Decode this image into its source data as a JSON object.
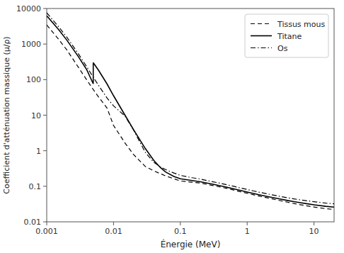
{
  "chart_data": {
    "type": "line",
    "xlabel": "Énergie (MeV)",
    "ylabel": "Coefficient d'atténuation massique (µ/ρ)",
    "log": true,
    "grid": false,
    "legend": "upper right",
    "xlim": [
      0.001,
      20
    ],
    "ylim": [
      0.01,
      10000
    ],
    "xticks": [
      0.001,
      0.01,
      0.1,
      1,
      10
    ],
    "yticks": [
      0.01,
      0.1,
      1,
      10,
      100,
      1000,
      10000
    ],
    "series": [
      {
        "name": "Tissus mous",
        "color": "#000000",
        "line_style": "dashed",
        "x": [
          0.001,
          0.0015,
          0.002,
          0.003,
          0.004,
          0.005,
          0.006,
          0.008,
          0.01,
          0.015,
          0.02,
          0.03,
          0.04,
          0.05,
          0.06,
          0.08,
          0.1,
          0.15,
          0.2,
          0.3,
          0.4,
          0.5,
          0.6,
          0.8,
          1.0,
          1.25,
          1.5,
          2.0,
          3.0,
          4.0,
          5.0,
          6.0,
          8.0,
          10.0,
          15.0,
          20.0
        ],
        "values": [
          3456,
          1376,
          683,
          218,
          96.0,
          51.7,
          32.0,
          15.8,
          5.12,
          1.61,
          0.778,
          0.358,
          0.272,
          0.227,
          0.196,
          0.163,
          0.141,
          0.13,
          0.123,
          0.106,
          0.0953,
          0.087,
          0.0802,
          0.07,
          0.0635,
          0.0575,
          0.0532,
          0.0473,
          0.0401,
          0.0357,
          0.0327,
          0.0307,
          0.0279,
          0.0261,
          0.0234,
          0.0222
        ]
      },
      {
        "name": "Titane",
        "color": "#000000",
        "line_style": "solid",
        "x": [
          0.001,
          0.0015,
          0.002,
          0.003,
          0.004,
          0.00497,
          0.00497,
          0.005,
          0.006,
          0.008,
          0.01,
          0.015,
          0.02,
          0.03,
          0.04,
          0.05,
          0.06,
          0.08,
          0.1,
          0.15,
          0.2,
          0.3,
          0.4,
          0.5,
          0.6,
          0.8,
          1.0,
          1.25,
          1.5,
          2.0,
          3.0,
          4.0,
          5.0,
          6.0,
          8.0,
          10.0,
          15.0,
          20.0
        ],
        "values": [
          6230,
          2580,
          1290,
          433,
          186,
          76.2,
          302,
          295,
          180,
          75.4,
          35.3,
          9.67,
          3.88,
          1.14,
          0.536,
          0.339,
          0.253,
          0.189,
          0.163,
          0.145,
          0.134,
          0.115,
          0.103,
          0.0939,
          0.0867,
          0.0759,
          0.069,
          0.0626,
          0.058,
          0.0518,
          0.0443,
          0.0399,
          0.0369,
          0.0348,
          0.0321,
          0.0302,
          0.0273,
          0.0259
        ]
      },
      {
        "name": "Os",
        "color": "#000000",
        "line_style": "dash-dot",
        "x": [
          0.001,
          0.0015,
          0.002,
          0.003,
          0.004,
          0.005,
          0.006,
          0.008,
          0.01,
          0.015,
          0.02,
          0.03,
          0.04,
          0.05,
          0.06,
          0.08,
          0.1,
          0.15,
          0.2,
          0.3,
          0.4,
          0.5,
          0.6,
          0.8,
          1.0,
          1.25,
          1.5,
          2.0,
          3.0,
          4.0,
          5.0,
          6.0,
          8.0,
          10.0,
          15.0,
          20.0
        ],
        "values": [
          7590,
          3094,
          1560,
          520,
          225,
          115,
          67.7,
          30.2,
          18.3,
          9.24,
          3.76,
          0.887,
          0.472,
          0.354,
          0.295,
          0.236,
          0.203,
          0.174,
          0.159,
          0.135,
          0.121,
          0.11,
          0.102,
          0.0891,
          0.0812,
          0.0737,
          0.0683,
          0.0611,
          0.0525,
          0.0476,
          0.0443,
          0.042,
          0.0389,
          0.0368,
          0.0337,
          0.0321
        ]
      }
    ]
  }
}
